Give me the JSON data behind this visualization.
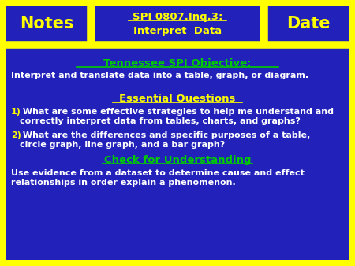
{
  "bg_color": "#FFFF00",
  "header_bg": "#2222BB",
  "body_bg": "#2222BB",
  "header_text_color": "#FFFF00",
  "title_color": "#00CC00",
  "body_text_color": "#FFFFFF",
  "number_color": "#FFFF00",
  "header_notes": "Notes",
  "header_center_line1": "SPI 0807.Inq.3:",
  "header_center_line2": "Interpret  Data",
  "header_date": "Date",
  "tn_objective_label": "Tennessee SPI Objective:",
  "tn_objective_text": "Interpret and translate data into a table, graph, or diagram.",
  "eq_label": "Essential Questions",
  "q1_num": "1)",
  "q1_text": " What are some effective strategies to help me understand and\ncorrectly interpret data from tables, charts, and graphs?",
  "q2_num": "2)",
  "q2_text": " What are the differences and specific purposes of a table,\ncircle graph, line graph, and a bar graph?",
  "cfu_label": "Check for Understanding",
  "cfu_text": "Use evidence from a dataset to determine cause and effect\nrelationships in order explain a phenomenon.",
  "border_color": "#FFFF00"
}
